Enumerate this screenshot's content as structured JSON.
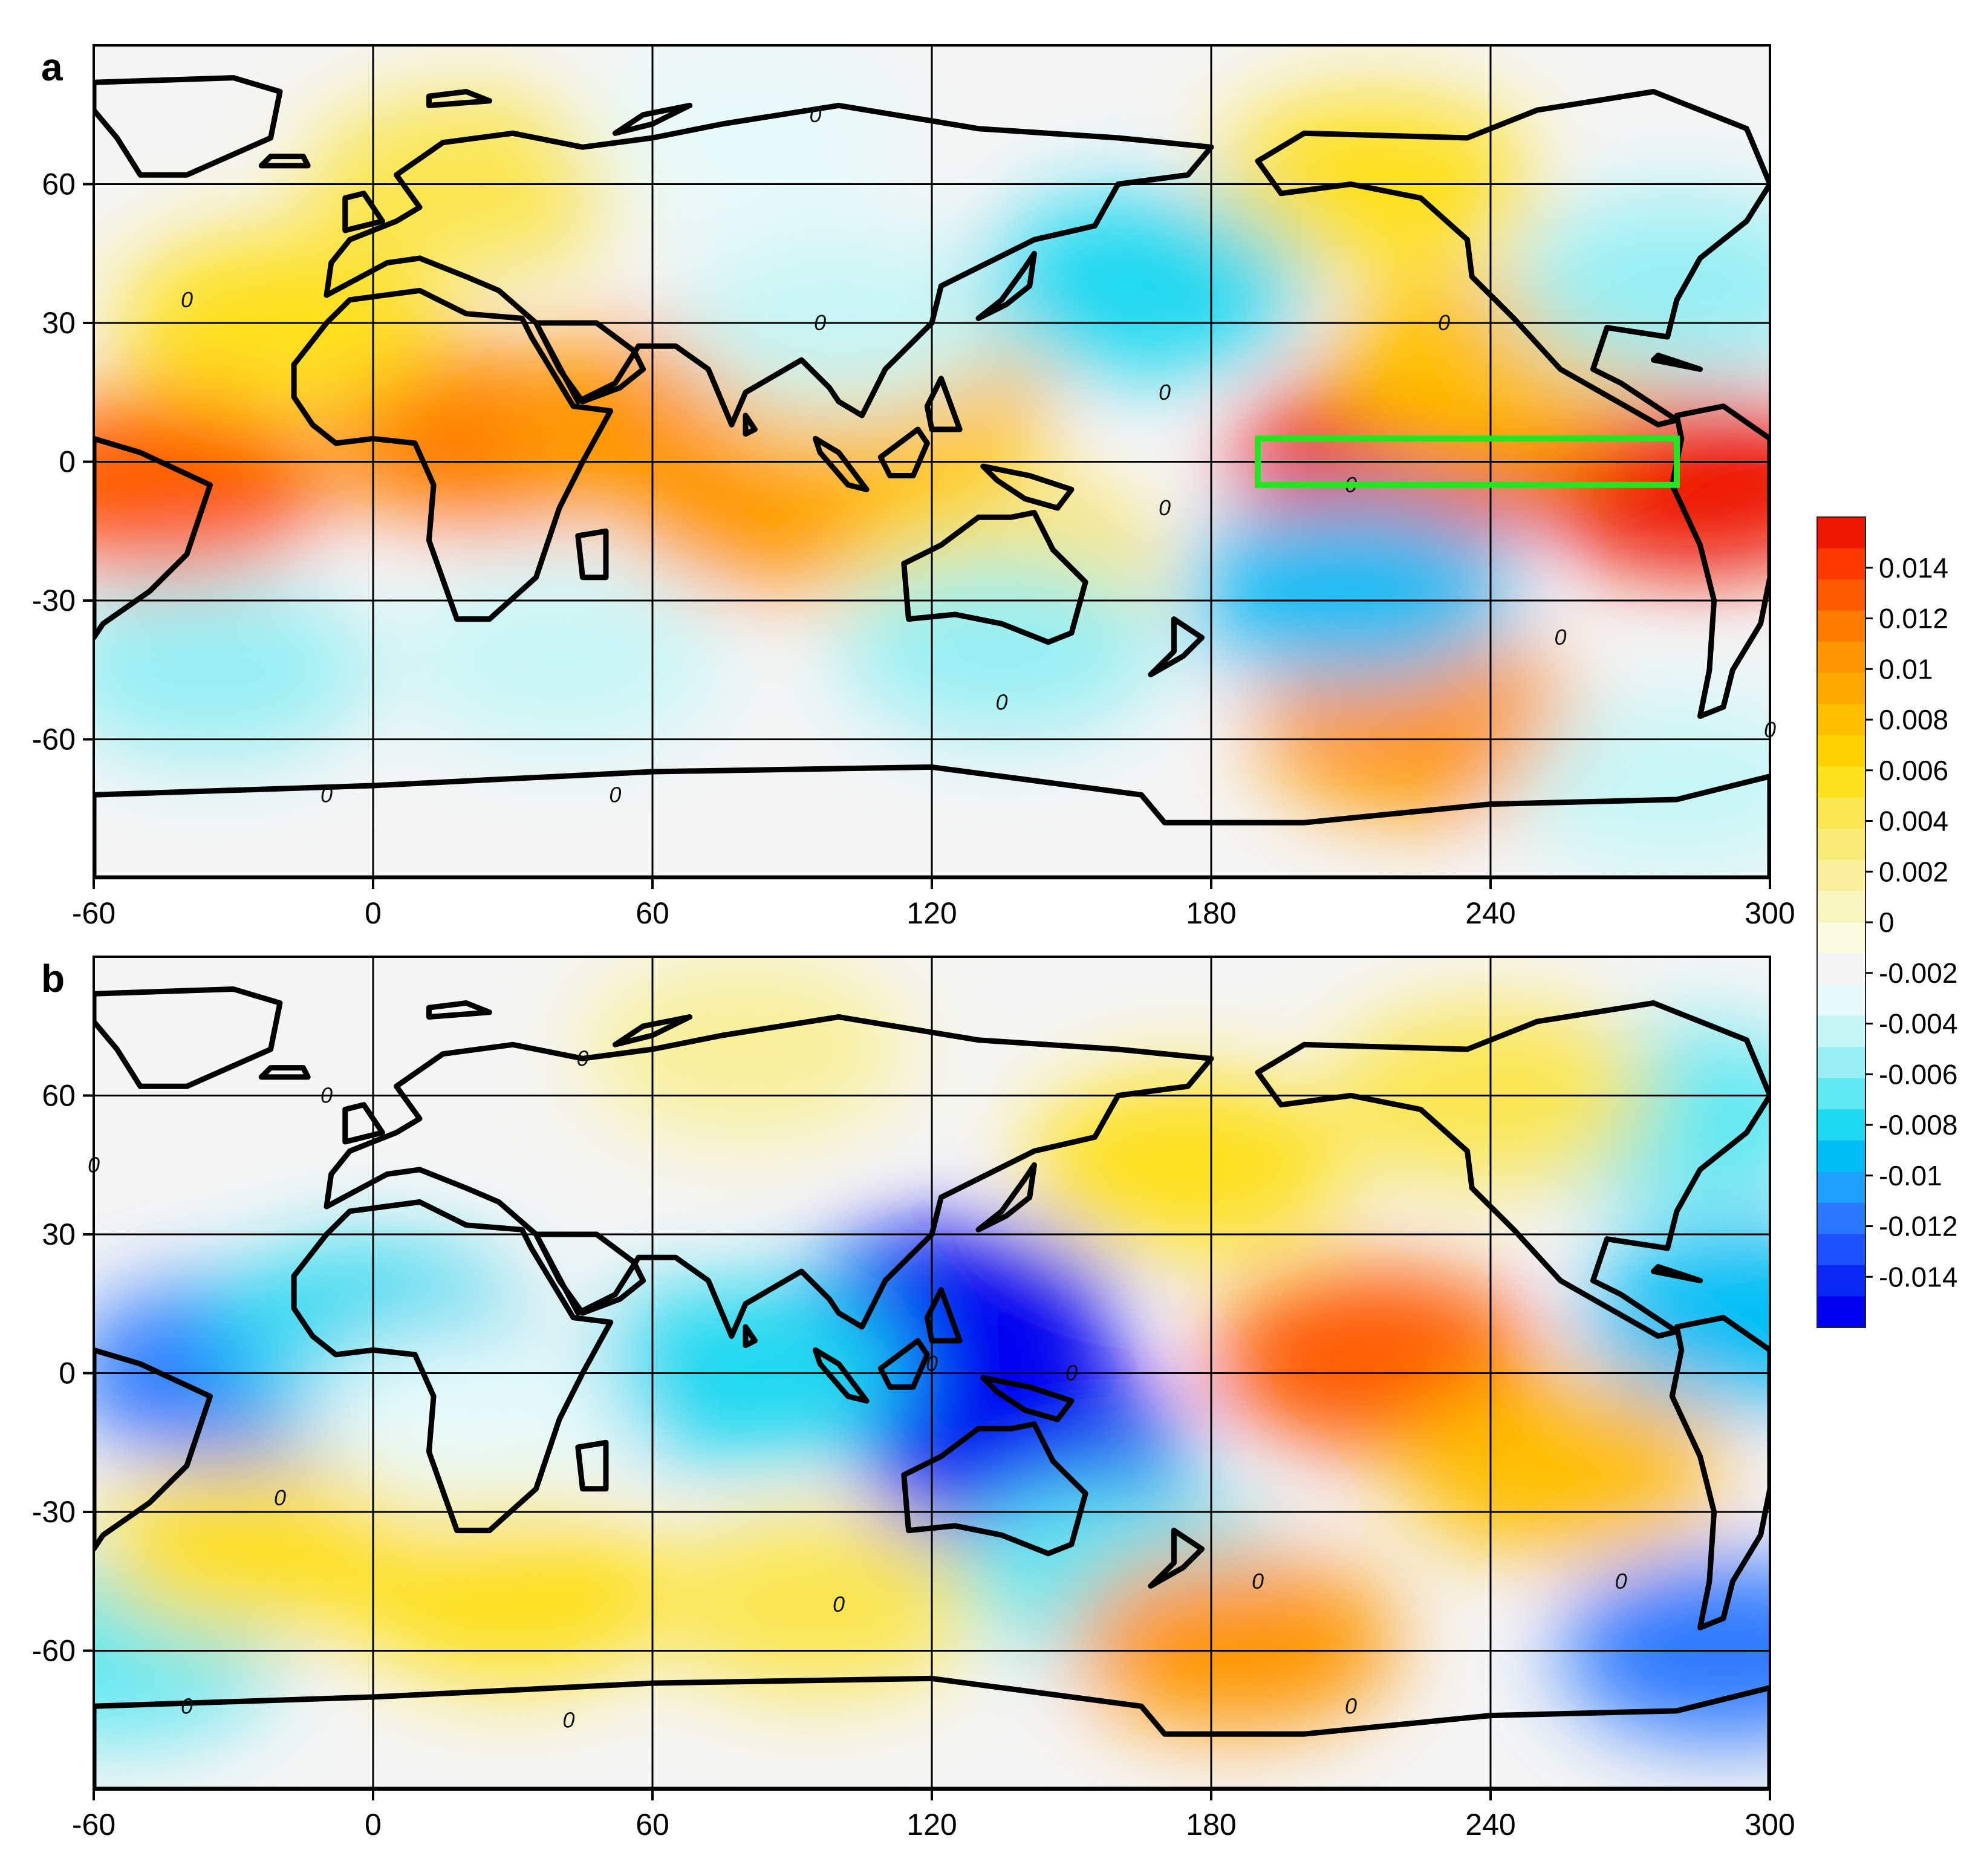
{
  "chart_data": [
    {
      "type": "heatmap",
      "panel_label": "a",
      "xlabel": "",
      "ylabel": "",
      "x_ticks": [
        "-60",
        "0",
        "60",
        "120",
        "180",
        "240",
        "300"
      ],
      "y_ticks": [
        "60",
        "30",
        "0",
        "-30",
        "-60"
      ],
      "xlim": [
        -60,
        300
      ],
      "ylim": [
        -90,
        90
      ],
      "grid": true,
      "contour_labels": [
        "0",
        "0",
        "0",
        "0",
        "0",
        "0",
        "0",
        "0",
        "0",
        "0",
        "0",
        "0"
      ],
      "highlight_box": {
        "lon": [
          190,
          280
        ],
        "lat": [
          -5,
          5
        ],
        "color": "#22e622"
      },
      "blobs": [
        {
          "lon": -45,
          "lat": -5,
          "value": 0.013
        },
        {
          "lon": 25,
          "lat": 5,
          "value": 0.012
        },
        {
          "lon": 60,
          "lat": 8,
          "value": 0.011
        },
        {
          "lon": 88,
          "lat": -8,
          "value": 0.011
        },
        {
          "lon": 110,
          "lat": 12,
          "value": 0.008
        },
        {
          "lon": 220,
          "lat": 0,
          "value": 0.016
        },
        {
          "lon": 285,
          "lat": -5,
          "value": 0.016
        },
        {
          "lon": 240,
          "lat": 20,
          "value": 0.008
        },
        {
          "lon": 225,
          "lat": -57,
          "value": 0.011
        },
        {
          "lon": 135,
          "lat": -25,
          "value": 0.006
        },
        {
          "lon": 215,
          "lat": 60,
          "value": 0.006
        },
        {
          "lon": -20,
          "lat": 30,
          "value": 0.006
        },
        {
          "lon": 20,
          "lat": 60,
          "value": 0.004
        },
        {
          "lon": -35,
          "lat": -45,
          "value": -0.005
        },
        {
          "lon": 40,
          "lat": -43,
          "value": -0.004
        },
        {
          "lon": 135,
          "lat": -40,
          "value": -0.005
        },
        {
          "lon": 210,
          "lat": -28,
          "value": -0.009
        },
        {
          "lon": 165,
          "lat": 38,
          "value": -0.008
        },
        {
          "lon": 100,
          "lat": 30,
          "value": -0.004
        },
        {
          "lon": 280,
          "lat": 38,
          "value": -0.006
        },
        {
          "lon": 80,
          "lat": 70,
          "value": -0.003
        },
        {
          "lon": 280,
          "lat": -70,
          "value": -0.004
        }
      ]
    },
    {
      "type": "heatmap",
      "panel_label": "b",
      "xlabel": "",
      "ylabel": "",
      "x_ticks": [
        "-60",
        "0",
        "60",
        "120",
        "180",
        "240",
        "300"
      ],
      "y_ticks": [
        "60",
        "30",
        "0",
        "-30",
        "-60"
      ],
      "xlim": [
        -60,
        300
      ],
      "ylim": [
        -90,
        90
      ],
      "grid": true,
      "contour_labels": [
        "0",
        "0",
        "0",
        "0",
        "0",
        "0",
        "0",
        "0",
        "0",
        "0",
        "0",
        "0"
      ],
      "blobs": [
        {
          "lon": -30,
          "lat": 0,
          "value": -0.012
        },
        {
          "lon": 0,
          "lat": 8,
          "value": -0.008
        },
        {
          "lon": 125,
          "lat": 12,
          "value": -0.016
        },
        {
          "lon": 140,
          "lat": -18,
          "value": -0.016
        },
        {
          "lon": 80,
          "lat": 0,
          "value": -0.008
        },
        {
          "lon": 290,
          "lat": -60,
          "value": -0.012
        },
        {
          "lon": 280,
          "lat": 55,
          "value": -0.007
        },
        {
          "lon": 295,
          "lat": 12,
          "value": -0.009
        },
        {
          "lon": 160,
          "lat": -42,
          "value": -0.007
        },
        {
          "lon": -55,
          "lat": -60,
          "value": -0.007
        },
        {
          "lon": 20,
          "lat": -10,
          "value": -0.003
        },
        {
          "lon": 215,
          "lat": 3,
          "value": 0.013
        },
        {
          "lon": 255,
          "lat": -20,
          "value": 0.008
        },
        {
          "lon": 185,
          "lat": -58,
          "value": 0.011
        },
        {
          "lon": 175,
          "lat": 45,
          "value": 0.006
        },
        {
          "lon": -25,
          "lat": -38,
          "value": 0.006
        },
        {
          "lon": 30,
          "lat": -48,
          "value": 0.005
        },
        {
          "lon": 95,
          "lat": -50,
          "value": 0.004
        },
        {
          "lon": 240,
          "lat": 60,
          "value": 0.004
        },
        {
          "lon": 80,
          "lat": 70,
          "value": 0.002
        }
      ]
    }
  ],
  "colorbar": {
    "labels": [
      "0.014",
      "0.012",
      "0.01",
      "0.008",
      "0.006",
      "0.004",
      "0.002",
      "0",
      "-0.002",
      "-0.004",
      "-0.006",
      "-0.008",
      "-0.01",
      "-0.012",
      "-0.014"
    ],
    "range": [
      -0.016,
      0.016
    ],
    "colors": [
      "#0000f0",
      "#0a28f5",
      "#1e50ff",
      "#2a78ff",
      "#1ea0ff",
      "#00bef5",
      "#1ed8f0",
      "#5fe8f2",
      "#98f0f4",
      "#c8f6f6",
      "#e8fafa",
      "#f5f5f5",
      "#fbfbe0",
      "#f8f5c0",
      "#f8f09a",
      "#f8ec78",
      "#fae650",
      "#fee11e",
      "#fed200",
      "#ffbe00",
      "#ffa800",
      "#ff9600",
      "#ff7a00",
      "#ff5a00",
      "#ff3a00",
      "#ee1800"
    ]
  }
}
